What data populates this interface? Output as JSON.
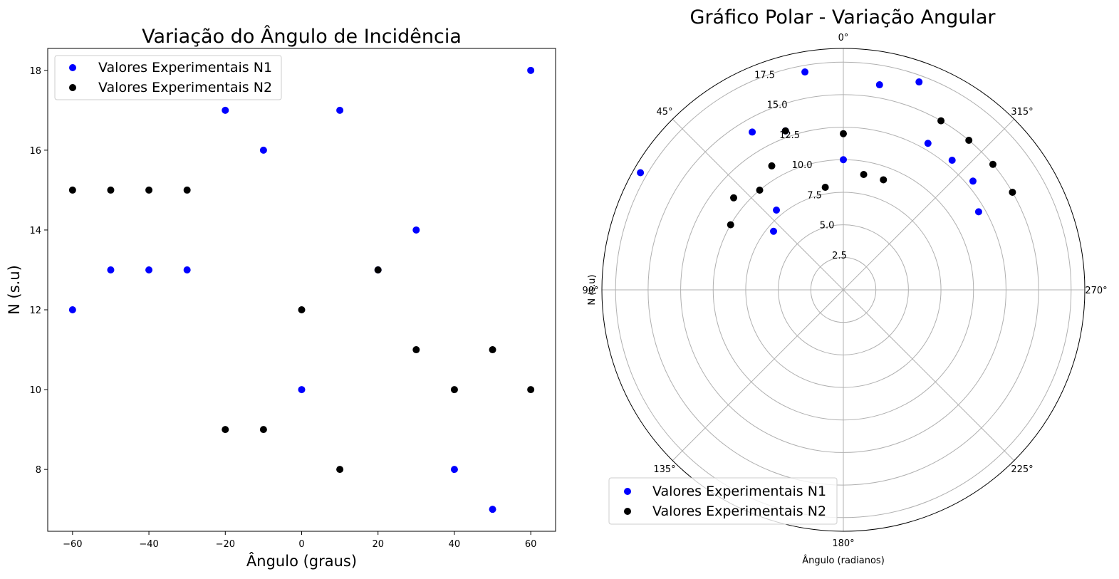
{
  "chart_data": [
    {
      "type": "scatter",
      "title": "Variação do Ângulo de Incidência",
      "xlabel": "Ângulo (graus)",
      "ylabel": "N (s.u)",
      "xlim": [
        -66.5,
        66.5
      ],
      "ylim": [
        6.45,
        18.55
      ],
      "xticks": [
        -60,
        -40,
        -20,
        0,
        20,
        40,
        60
      ],
      "xtick_labels": [
        "−60",
        "−40",
        "−20",
        "0",
        "20",
        "40",
        "60"
      ],
      "yticks": [
        8,
        10,
        12,
        14,
        16,
        18
      ],
      "ytick_labels": [
        "8",
        "10",
        "12",
        "14",
        "16",
        "18"
      ],
      "grid": false,
      "legend_position": "top-left",
      "series": [
        {
          "name": "Valores Experimentais N1",
          "color": "#0000ff",
          "x": [
            -60,
            -50,
            -40,
            -30,
            -20,
            -10,
            0,
            10,
            20,
            30,
            40,
            50,
            60
          ],
          "y": [
            12,
            13,
            13,
            13,
            17,
            16,
            10,
            17,
            13,
            14,
            8,
            7,
            18
          ]
        },
        {
          "name": "Valores Experimentais N2",
          "color": "#000000",
          "x": [
            -60,
            -50,
            -40,
            -30,
            -20,
            -10,
            0,
            10,
            20,
            30,
            40,
            50,
            60
          ],
          "y": [
            15,
            15,
            15,
            15,
            9,
            9,
            12,
            8,
            13,
            11,
            10,
            11,
            10
          ]
        }
      ]
    },
    {
      "type": "scatter",
      "subtype": "polar",
      "title": "Gráfico Polar - Variação Angular",
      "xlabel": "Ângulo (radianos)",
      "ylabel": "N (s.u)",
      "theta_zero_location": "top",
      "theta_direction": "counterclockwise",
      "theta_unit": "degrees",
      "rlim": [
        0,
        18.55
      ],
      "rticks": [
        2.5,
        5.0,
        7.5,
        10.0,
        12.5,
        15.0,
        17.5
      ],
      "rtick_labels": [
        "2.5",
        "5.0",
        "7.5",
        "10.0",
        "12.5",
        "15.0",
        "17.5"
      ],
      "thetaticks": [
        0,
        45,
        90,
        135,
        180,
        225,
        270,
        315
      ],
      "thetatick_labels": [
        "0°",
        "45°",
        "90°",
        "135°",
        "180°",
        "225°",
        "270°",
        "315°"
      ],
      "grid": true,
      "legend_position": "lower-left",
      "series": [
        {
          "name": "Valores Experimentais N1",
          "color": "#0000ff",
          "theta": [
            -60,
            -50,
            -40,
            -30,
            -20,
            -10,
            0,
            10,
            20,
            30,
            40,
            50,
            60
          ],
          "r": [
            12,
            13,
            13,
            13,
            17,
            16,
            10,
            17,
            13,
            14,
            8,
            7,
            18
          ]
        },
        {
          "name": "Valores Experimentais N2",
          "color": "#000000",
          "theta": [
            -60,
            -50,
            -40,
            -30,
            -20,
            -10,
            0,
            10,
            20,
            30,
            40,
            50,
            60
          ],
          "r": [
            15,
            15,
            15,
            15,
            9,
            9,
            12,
            8,
            13,
            11,
            10,
            11,
            10
          ]
        }
      ]
    }
  ]
}
